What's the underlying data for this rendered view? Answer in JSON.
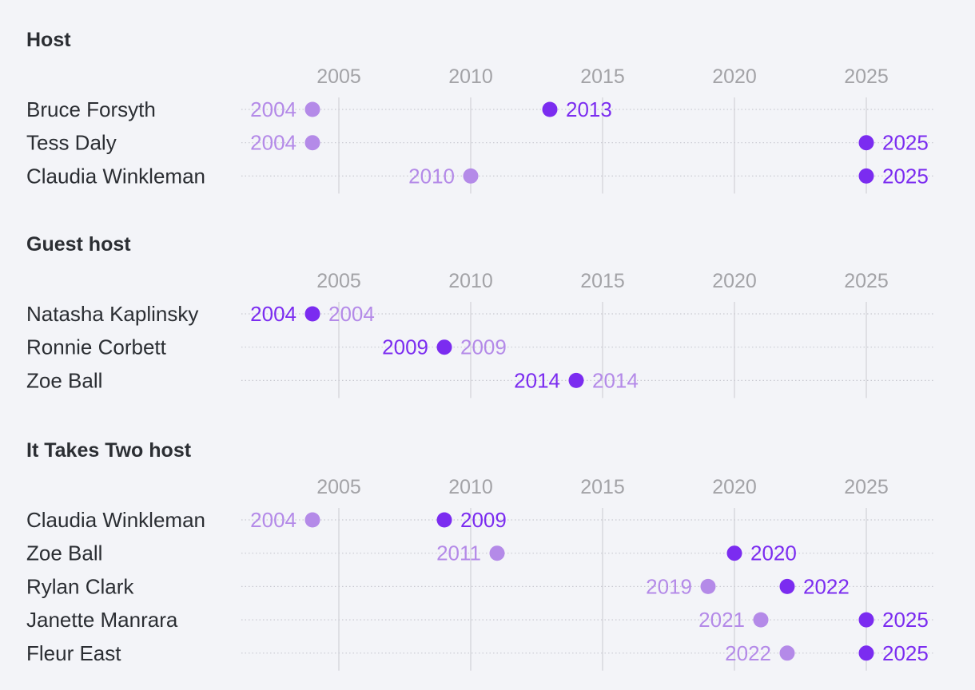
{
  "chart_data": {
    "type": "dumbbell",
    "axis_ticks": [
      2005,
      2010,
      2015,
      2020,
      2025
    ],
    "xlim": [
      2002,
      2027.5
    ],
    "colors": {
      "start": "#b48ae8",
      "end": "#7b2cf0",
      "bar_start": "#d5bdf6",
      "bar_end": "#a877f0",
      "text": "#2b2e33",
      "tick": "#a3a3a7"
    },
    "sections": [
      {
        "title": "Host",
        "rows": [
          {
            "name": "Bruce Forsyth",
            "start": 2004,
            "end": 2013
          },
          {
            "name": "Tess Daly",
            "start": 2004,
            "end": 2025
          },
          {
            "name": "Claudia Winkleman",
            "start": 2010,
            "end": 2025
          }
        ]
      },
      {
        "title": "Guest host",
        "rows": [
          {
            "name": "Natasha Kaplinsky",
            "start": 2004,
            "end": 2004
          },
          {
            "name": "Ronnie Corbett",
            "start": 2009,
            "end": 2009
          },
          {
            "name": "Zoe Ball",
            "start": 2014,
            "end": 2014
          }
        ]
      },
      {
        "title": "It Takes Two host",
        "rows": [
          {
            "name": "Claudia Winkleman",
            "start": 2004,
            "end": 2009
          },
          {
            "name": "Zoe Ball",
            "start": 2011,
            "end": 2020
          },
          {
            "name": "Rylan Clark",
            "start": 2019,
            "end": 2022
          },
          {
            "name": "Janette Manrara",
            "start": 2021,
            "end": 2025
          },
          {
            "name": "Fleur East",
            "start": 2022,
            "end": 2025
          }
        ]
      }
    ]
  }
}
